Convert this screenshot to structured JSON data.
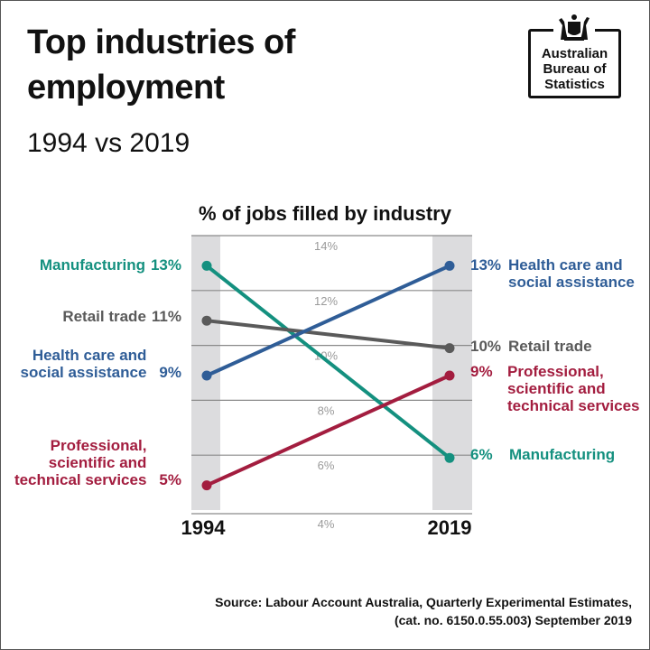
{
  "header": {
    "title_line1": "Top industries of",
    "title_line2": "employment",
    "subtitle": "1994 vs 2019"
  },
  "logo": {
    "line1": "Australian",
    "line2": "Bureau of",
    "line3": "Statistics",
    "icon": "coat-of-arms-icon"
  },
  "chart_data": {
    "type": "line",
    "title": "% of jobs filled by industry",
    "x": [
      "1994",
      "2019"
    ],
    "xlabel": "",
    "ylabel": "",
    "ylim": [
      4,
      14
    ],
    "yticks": [
      "14%",
      "12%",
      "10%",
      "8%",
      "6%",
      "4%"
    ],
    "ytick_values": [
      14,
      12,
      10,
      8,
      6,
      4
    ],
    "grid": true,
    "series": [
      {
        "name": "Manufacturing",
        "values": [
          13,
          6
        ],
        "color": "#14907f",
        "start_label": [
          "Manufacturing"
        ],
        "start_pct": "13%",
        "end_label": [
          "Manufacturing"
        ],
        "end_pct": "6%"
      },
      {
        "name": "Retail trade",
        "values": [
          11,
          10
        ],
        "color": "#5a5a5a",
        "start_label": [
          "Retail trade"
        ],
        "start_pct": "11%",
        "end_label": [
          "Retail trade"
        ],
        "end_pct": "10%"
      },
      {
        "name": "Health care and social assistance",
        "values": [
          9,
          13
        ],
        "color": "#2f5d97",
        "start_label": [
          "Health care and",
          "social assistance"
        ],
        "start_pct": "9%",
        "end_label": [
          "Health care and",
          "social assistance"
        ],
        "end_pct": "13%"
      },
      {
        "name": "Professional, scientific and technical services",
        "values": [
          5,
          9
        ],
        "color": "#a31d3f",
        "start_label": [
          "Professional,",
          "scientific and",
          "technical services"
        ],
        "start_pct": "5%",
        "end_label": [
          "Professional,",
          "scientific and",
          "technical services"
        ],
        "end_pct": "9%"
      }
    ]
  },
  "source": {
    "line1": "Source:  Labour Account Australia, Quarterly Experimental Estimates,",
    "line2": "(cat. no. 6150.0.55.003) September 2019"
  }
}
